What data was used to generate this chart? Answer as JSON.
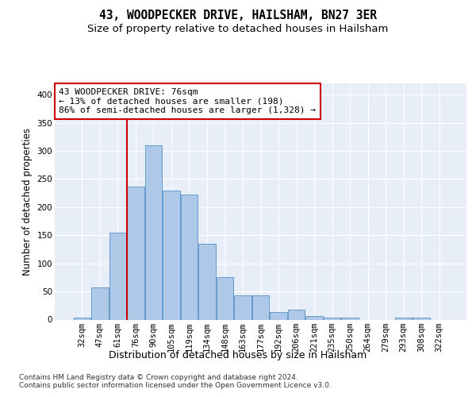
{
  "title": "43, WOODPECKER DRIVE, HAILSHAM, BN27 3ER",
  "subtitle": "Size of property relative to detached houses in Hailsham",
  "xlabel": "Distribution of detached houses by size in Hailsham",
  "ylabel": "Number of detached properties",
  "categories": [
    "32sqm",
    "47sqm",
    "61sqm",
    "76sqm",
    "90sqm",
    "105sqm",
    "119sqm",
    "134sqm",
    "148sqm",
    "163sqm",
    "177sqm",
    "192sqm",
    "206sqm",
    "221sqm",
    "235sqm",
    "250sqm",
    "264sqm",
    "279sqm",
    "293sqm",
    "308sqm",
    "322sqm"
  ],
  "values": [
    4,
    57,
    155,
    237,
    310,
    230,
    222,
    135,
    76,
    43,
    43,
    13,
    18,
    7,
    4,
    4,
    0,
    0,
    4,
    3,
    0
  ],
  "bar_color": "#aec9e8",
  "bar_edge_color": "#6699cc",
  "vline_color": "#cc0000",
  "annotation_text": "43 WOODPECKER DRIVE: 76sqm\n← 13% of detached houses are smaller (198)\n86% of semi-detached houses are larger (1,328) →",
  "annotation_box_color": "#cc0000",
  "ylim": [
    0,
    420
  ],
  "yticks": [
    0,
    50,
    100,
    150,
    200,
    250,
    300,
    350,
    400
  ],
  "background_color": "#e8eef8",
  "footer_text": "Contains HM Land Registry data © Crown copyright and database right 2024.\nContains public sector information licensed under the Open Government Licence v3.0.",
  "title_fontsize": 10.5,
  "subtitle_fontsize": 9.5,
  "xlabel_fontsize": 9,
  "ylabel_fontsize": 8.5,
  "tick_fontsize": 7.5,
  "annotation_fontsize": 8,
  "footer_fontsize": 6.5
}
